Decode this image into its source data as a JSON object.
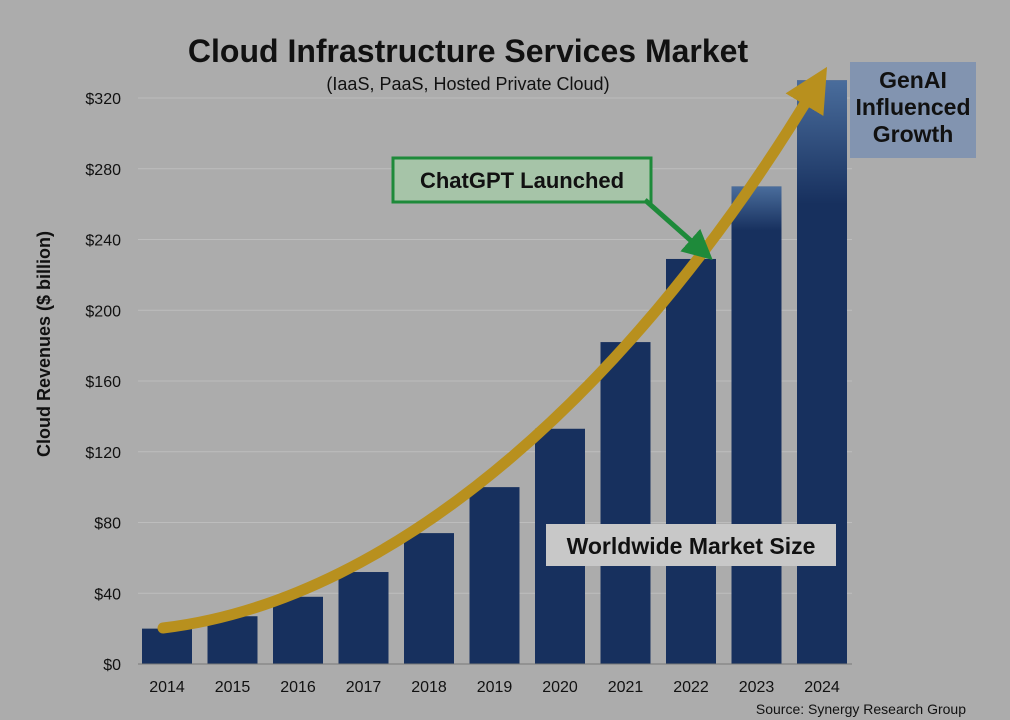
{
  "chart_data": {
    "type": "bar",
    "title": "Cloud Infrastructure Services Market",
    "subtitle": "(IaaS, PaaS, Hosted Private Cloud)",
    "ylabel": "Cloud Revenues ($ billion)",
    "xlabel": "",
    "categories": [
      "2014",
      "2015",
      "2016",
      "2017",
      "2018",
      "2019",
      "2020",
      "2021",
      "2022",
      "2023",
      "2024"
    ],
    "values": [
      20,
      27,
      38,
      52,
      74,
      100,
      133,
      182,
      229,
      270,
      330
    ],
    "genai_increment": {
      "2023": 25,
      "2024": 70
    },
    "ylim": [
      0,
      320
    ],
    "yticks": [
      0,
      40,
      80,
      120,
      160,
      200,
      240,
      280,
      320
    ],
    "ytick_labels": [
      "$0",
      "$40",
      "$80",
      "$120",
      "$160",
      "$200",
      "$240",
      "$280",
      "$320"
    ],
    "grid": true,
    "annotations": {
      "chatgpt": "ChatGPT Launched",
      "genai_line1": "GenAI",
      "genai_line2": "Influenced",
      "genai_line3": "Growth",
      "market_size": "Worldwide Market Size"
    },
    "source": "Source: Synergy Research Group",
    "colors": {
      "bar": "#17305e",
      "genai_top": "#4a6d9c",
      "trend_arrow": "#b8901e",
      "callout_border": "#1e8a3a",
      "callout_fill": "#a6c4a8",
      "genai_box": "#8294b0",
      "market_box": "#c8c8c8",
      "background": "#acacac",
      "grid": "#bdbdbd"
    }
  }
}
